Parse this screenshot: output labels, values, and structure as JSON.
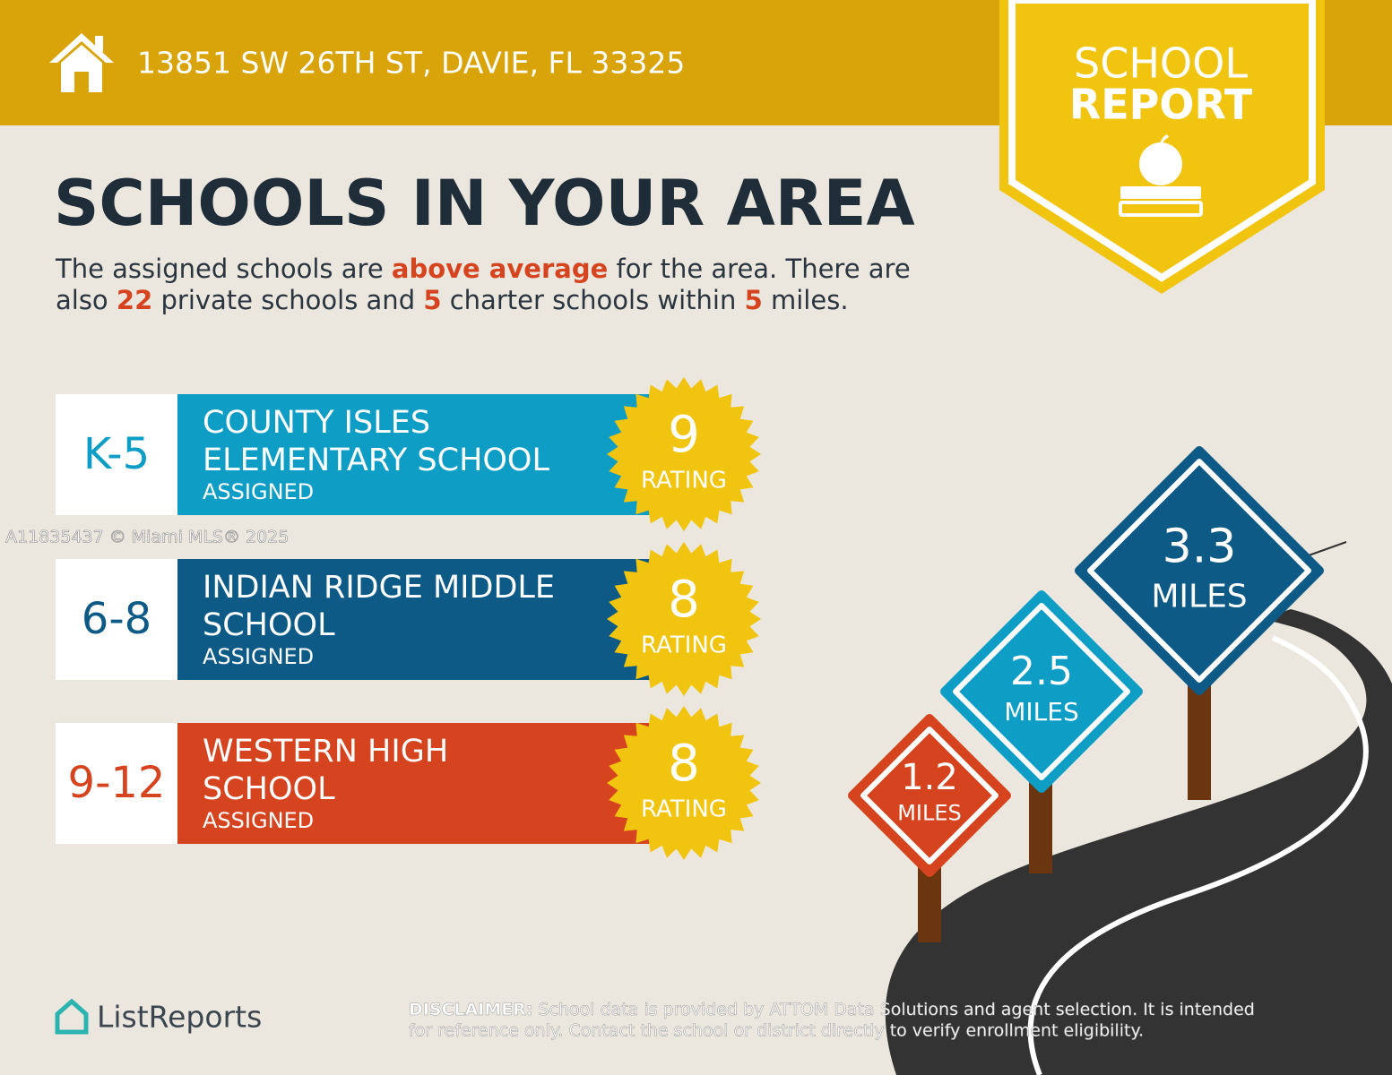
{
  "header": {
    "address": "13851 SW 26TH ST, DAVIE, FL 33325"
  },
  "badge": {
    "line1": "SCHOOL",
    "line2": "REPORT"
  },
  "title": "SCHOOLS IN YOUR AREA",
  "intro": {
    "parts": [
      "The assigned schools are ",
      "above average",
      " for the area. There are",
      "also ",
      "22",
      " private schools and ",
      "5",
      " charter schools within ",
      "5",
      " miles."
    ]
  },
  "schools": [
    {
      "grade": "K-5",
      "name_lines": [
        "COUNTY ISLES",
        "ELEMENTARY SCHOOL"
      ],
      "status": "ASSIGNED",
      "rating": 9,
      "rating_label": "RATING"
    },
    {
      "grade": "6-8",
      "name_lines": [
        "INDIAN RIDGE MIDDLE",
        "SCHOOL"
      ],
      "status": "ASSIGNED",
      "rating": 8,
      "rating_label": "RATING"
    },
    {
      "grade": "9-12",
      "name_lines": [
        "WESTERN HIGH",
        "SCHOOL"
      ],
      "status": "ASSIGNED",
      "rating": 8,
      "rating_label": "RATING"
    }
  ],
  "signs": [
    {
      "distance": "1.2",
      "unit": "MILES"
    },
    {
      "distance": "2.5",
      "unit": "MILES"
    },
    {
      "distance": "3.3",
      "unit": "MILES"
    }
  ],
  "watermark": "A11835437 © Miami MLS® 2025",
  "logo": "ListReports",
  "disclaimer": {
    "label": "DISCLAIMER:",
    "line1": " School data is provided by ATTOM Data Solutions and agent selection. It is intended",
    "line2": "for reference only. Contact the school or district directly to verify enrollment eligibility."
  }
}
